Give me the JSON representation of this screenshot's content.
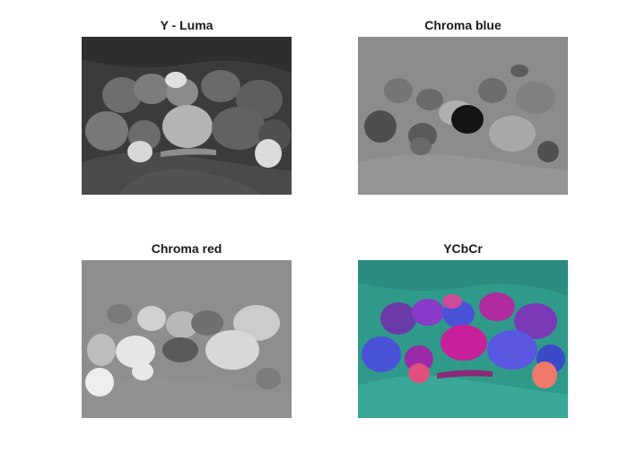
{
  "panels": [
    {
      "title": "Y - Luma",
      "depicts": "grayscale luminance image of bell peppers, chili peppers and garlic on a draped cloth"
    },
    {
      "title": "Chroma blue",
      "depicts": "mid-gray blue-difference chroma channel of the peppers image"
    },
    {
      "title": "Chroma red",
      "depicts": "mid-gray red-difference chroma channel with bright pepper outlines"
    },
    {
      "title": "YCbCr",
      "depicts": "false-color YCbCr rendering with teal background and magenta/blue peppers"
    }
  ],
  "colors": {
    "luma_bg": "#3a3a3a",
    "cb_bg": "#8a8a8a",
    "cr_bg": "#8c8c8c",
    "ycbcr_bg": "#2f9a8a",
    "ycbcr_pepper": "#c02a9a",
    "ycbcr_blue": "#4a52d8"
  }
}
